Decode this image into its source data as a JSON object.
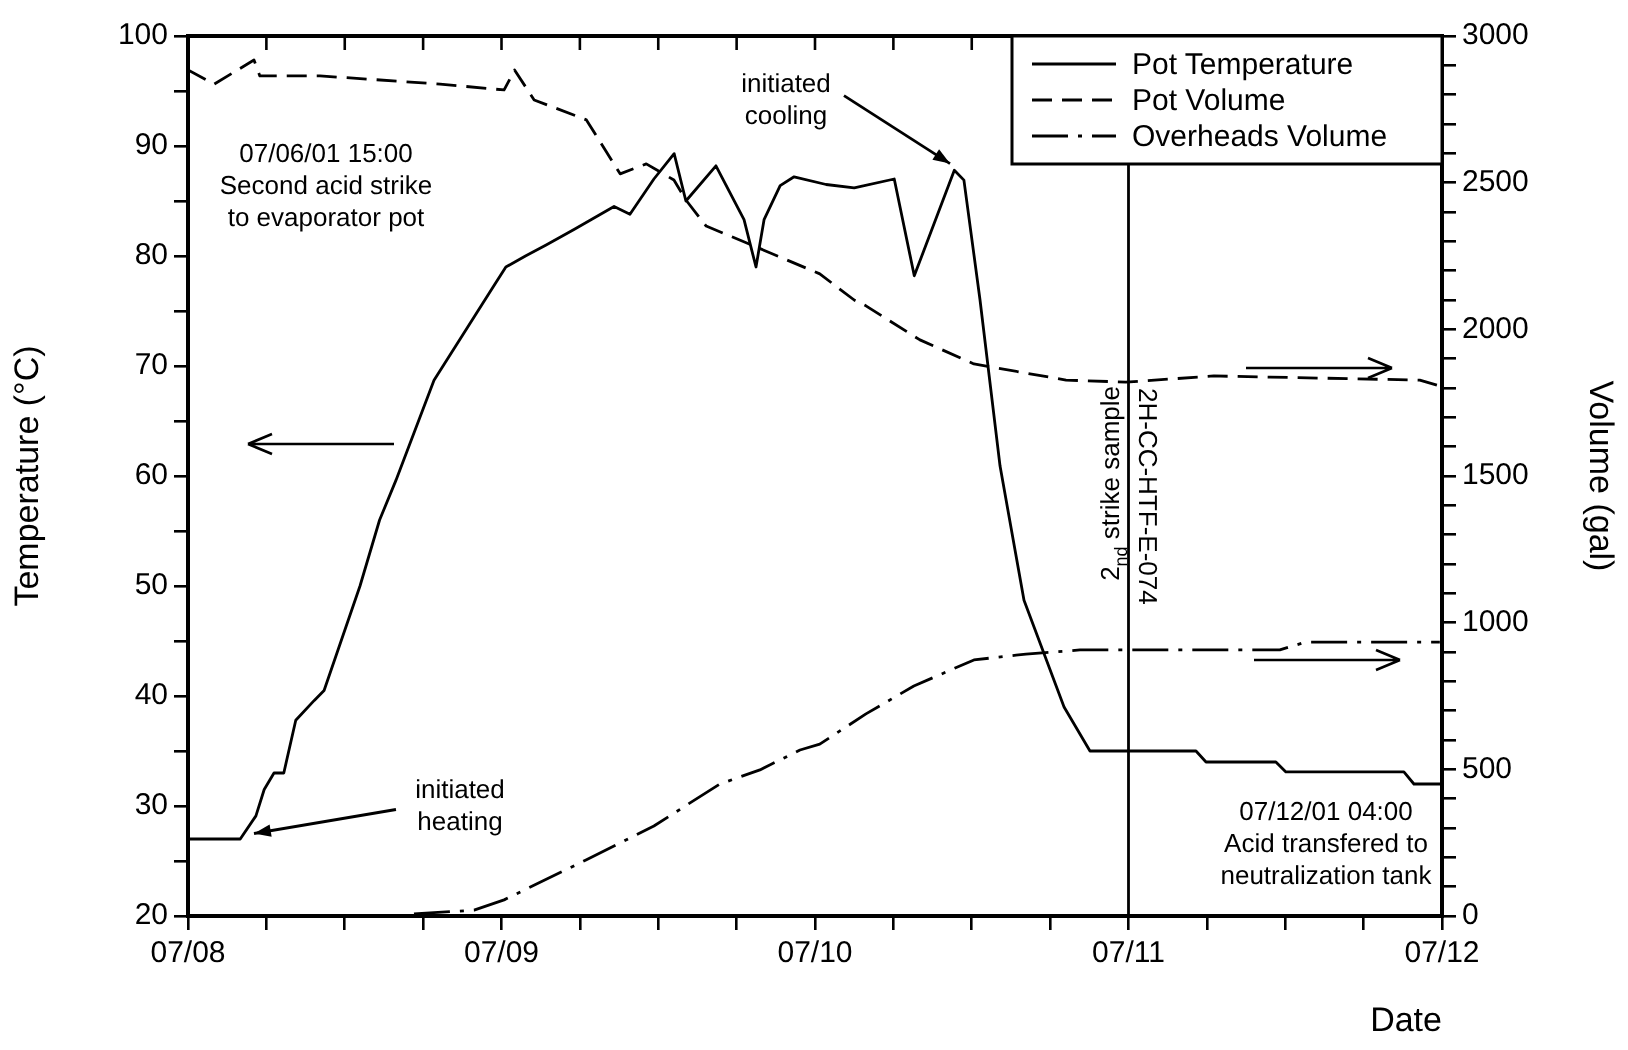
{
  "chart_data": {
    "type": "line",
    "xlabel": "Date",
    "ylabel": "Temperature (°C)",
    "y2label": "Volume (gal)",
    "xlim": [
      "--07-08",
      "--07-12"
    ],
    "xticks": [
      {
        "value": "--07-08",
        "label": "07/08"
      },
      {
        "value": "--07-08T06:00",
        "label": null
      },
      {
        "value": "--07-08T12:00",
        "label": null
      },
      {
        "value": "--07-08T18:00",
        "label": null
      },
      {
        "value": "--07-09",
        "label": "07/09"
      },
      {
        "value": "--07-09T06:00",
        "label": null
      },
      {
        "value": "--07-09T12:00",
        "label": null
      },
      {
        "value": "--07-09T18:00",
        "label": null
      },
      {
        "value": "--07-10",
        "label": "07/10"
      },
      {
        "value": "--07-10T06:00",
        "label": null
      },
      {
        "value": "--07-10T12:00",
        "label": null
      },
      {
        "value": "--07-10T18:00",
        "label": null
      },
      {
        "value": "--07-11",
        "label": "07/11"
      },
      {
        "value": "--07-11T06:00",
        "label": null
      },
      {
        "value": "--07-11T12:00",
        "label": null
      },
      {
        "value": "--07-11T18:00",
        "label": null
      },
      {
        "value": "--07-12",
        "label": "07/12"
      }
    ],
    "ylim": [
      20,
      100
    ],
    "yticks": [
      20,
      {
        "value": 25,
        "label": null
      },
      30,
      {
        "value": 35,
        "label": null
      },
      40,
      {
        "value": 45,
        "label": null
      },
      50,
      {
        "value": 55,
        "label": null
      },
      60,
      {
        "value": 65,
        "label": null
      },
      70,
      {
        "value": 75,
        "label": null
      },
      80,
      {
        "value": 85,
        "label": null
      },
      90,
      {
        "value": 95,
        "label": null
      },
      100
    ],
    "y2lim": [
      0,
      3000
    ],
    "y2ticks": [
      0,
      {
        "value": 100,
        "label": null
      },
      {
        "value": 200,
        "label": null
      },
      {
        "value": 300,
        "label": null
      },
      {
        "value": 400,
        "label": null
      },
      500,
      {
        "value": 600,
        "label": null
      },
      {
        "value": 700,
        "label": null
      },
      {
        "value": 800,
        "label": null
      },
      {
        "value": 900,
        "label": null
      },
      1000,
      {
        "value": 1100,
        "label": null
      },
      {
        "value": 1200,
        "label": null
      },
      {
        "value": 1300,
        "label": null
      },
      {
        "value": 1400,
        "label": null
      },
      1500,
      {
        "value": 1600,
        "label": null
      },
      {
        "value": 1700,
        "label": null
      },
      {
        "value": 1800,
        "label": null
      },
      {
        "value": 1900,
        "label": null
      },
      2000,
      {
        "value": 2100,
        "label": null
      },
      {
        "value": 2200,
        "label": null
      },
      {
        "value": 2300,
        "label": null
      },
      {
        "value": 2400,
        "label": null
      },
      2500,
      {
        "value": 2600,
        "label": null
      },
      {
        "value": 2700,
        "label": null
      },
      {
        "value": 2800,
        "label": null
      },
      {
        "value": 2900,
        "label": null
      },
      3000
    ],
    "legend": "top right",
    "marker": "none",
    "series": [
      {
        "name": "Pot Temperature",
        "color": "#000000",
        "line_style": "solid",
        "x": [
          "--07-08T00:00",
          "--07-08T04:00",
          "--07-08T05:12",
          "--07-08T05:50",
          "--07-08T06:35",
          "--07-08T07:20",
          "--07-08T08:15",
          "--07-08T09:40",
          "--07-08T10:25",
          "--07-08T13:10",
          "--07-08T14:40",
          "--07-08T15:55",
          "--07-08T18:50",
          "--07-08T23:25",
          "--07-09T00:20",
          "--07-09T01:50",
          "--07-09T03:25",
          "--07-09T05:33",
          "--07-09T08:37",
          "--07-09T09:50",
          "--07-09T11:40",
          "--07-09T13:13",
          "--07-09T14:07",
          "--07-09T16:25",
          "--07-09T18:34",
          "--07-09T19:29",
          "--07-09T20:06",
          "--07-09T21:20",
          "--07-09T22:24",
          "--07-10T00:51",
          "--07-10T03:00",
          "--07-10T06:04",
          "--07-10T07:36",
          "--07-10T10:40",
          "--07-10T11:24",
          "--07-10T12:38",
          "--07-10T14:10",
          "--07-10T16:00",
          "--07-10T19:04",
          "--07-10T21:03",
          "--07-11T05:10",
          "--07-11T05:56",
          "--07-11T11:17",
          "--07-11T12:03",
          "--07-11T21:05",
          "--07-11T21:51",
          "--07-12T00:00"
        ],
        "values": [
          27,
          27,
          29.1,
          31.5,
          33,
          33,
          37.8,
          39.6,
          40.5,
          50,
          56,
          59.6,
          68.7,
          77.3,
          79,
          80,
          81,
          82.4,
          84.5,
          83.8,
          87,
          89.3,
          85,
          88.2,
          83.3,
          79,
          83.3,
          86.4,
          87.2,
          86.5,
          86.2,
          87,
          78.2,
          87.8,
          86.9,
          76,
          60.9,
          48.7,
          39,
          35,
          35,
          34,
          34,
          33.1,
          33.1,
          32,
          32
        ]
      },
      {
        "name": "Pot Volume",
        "color": "#000000",
        "line_style": "dashed",
        "axis": "y2",
        "x": [
          "--07-08T00:00",
          "--07-08T02:00",
          "--07-08T05:03",
          "--07-08T05:30",
          "--07-08T10:06",
          "--07-08T19:18",
          "--07-09T00:12",
          "--07-09T01:00",
          "--07-09T02:30",
          "--07-09T06:30",
          "--07-09T09:05",
          "--07-09T11:05",
          "--07-09T13:12",
          "--07-09T14:07",
          "--07-09T15:40",
          "--07-09T19:20",
          "--07-10T00:22",
          "--07-10T03:00",
          "--07-10T03:54",
          "--07-10T08:02",
          "--07-10T12:10",
          "--07-10T19:13",
          "--07-10T23:48",
          "--07-11T06:32",
          "--07-11T22:18",
          "--07-11T23:50"
        ],
        "values": [
          2884,
          2836,
          2918,
          2864,
          2864,
          2836,
          2816,
          2884,
          2782,
          2714,
          2530,
          2564,
          2509,
          2441,
          2352,
          2284,
          2189,
          2100,
          2080,
          1964,
          1882,
          1827,
          1820,
          1841,
          1827,
          1807
        ]
      },
      {
        "name": "Overheads Volume",
        "color": "#000000",
        "line_style": "dashed",
        "axis": "y2",
        "x": [
          "--07-08T17:18",
          "--07-08T21:54",
          "--07-09T00:12",
          "--07-09T06:28",
          "--07-09T11:40",
          "--07-09T16:43",
          "--07-09T19:47",
          "--07-09T22:51",
          "--07-10T00:22",
          "--07-10T03:54",
          "--07-10T07:34",
          "--07-10T12:10",
          "--07-10T16:09",
          "--07-10T20:17",
          "--07-11T11:35",
          "--07-11T13:34",
          "--07-11T23:50"
        ],
        "values": [
          7,
          20,
          55,
          191,
          307,
          450,
          498,
          566,
          586,
          689,
          784,
          873,
          893,
          907,
          907,
          934,
          934
        ]
      }
    ],
    "ref_lines": [
      {
        "axis": "x",
        "value": "--07-11",
        "label": "2$_{nd}$ strike sample\n2H-CC-HTF-E-074",
        "color": "#000000",
        "line_style": "solid"
      }
    ],
    "annotations": [
      "07/06/01 15:00\nSecond acid strike\nto evaporator pot",
      {
        "text": "initiated\nheating",
        "x": "--07-08T05:03",
        "y": 27.5
      },
      {
        "text": "initiated\ncooling",
        "x": "--07-10T10:20",
        "y": 88.4
      },
      "07/12/01 04:00\nAcid transfered to\nneutralization tank"
    ]
  }
}
